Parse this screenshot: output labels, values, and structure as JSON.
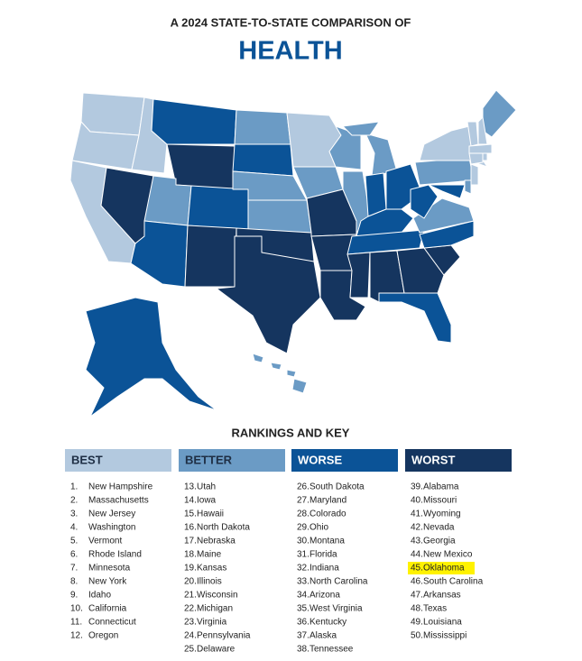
{
  "header": {
    "pretitle": "A 2024 STATE-TO-STATE COMPARISON OF",
    "title": "HEALTH"
  },
  "key_title": "RANKINGS AND KEY",
  "tiers": [
    {
      "name": "BEST",
      "color": "#b3c9df",
      "text_color": "#1f2f45",
      "entries": [
        {
          "rank": "1.",
          "state": "New Hampshire"
        },
        {
          "rank": "2.",
          "state": "Massachusetts"
        },
        {
          "rank": "3.",
          "state": "New Jersey"
        },
        {
          "rank": "4.",
          "state": "Washington"
        },
        {
          "rank": "5.",
          "state": "Vermont"
        },
        {
          "rank": "6.",
          "state": "Rhode Island"
        },
        {
          "rank": "7.",
          "state": "Minnesota"
        },
        {
          "rank": "8.",
          "state": "New York"
        },
        {
          "rank": "9.",
          "state": "Idaho"
        },
        {
          "rank": "10.",
          "state": "California"
        },
        {
          "rank": "11.",
          "state": "Connecticut"
        },
        {
          "rank": "12.",
          "state": "Oregon"
        }
      ]
    },
    {
      "name": "BETTER",
      "color": "#6b9bc5",
      "text_color": "#1f2f45",
      "entries": [
        {
          "rank": "13.",
          "state": "Utah"
        },
        {
          "rank": "14.",
          "state": "Iowa"
        },
        {
          "rank": "15.",
          "state": "Hawaii"
        },
        {
          "rank": "16.",
          "state": "North Dakota"
        },
        {
          "rank": "17.",
          "state": "Nebraska"
        },
        {
          "rank": "18.",
          "state": "Maine"
        },
        {
          "rank": "19.",
          "state": "Kansas"
        },
        {
          "rank": "20.",
          "state": "Illinois"
        },
        {
          "rank": "21.",
          "state": "Wisconsin"
        },
        {
          "rank": "22.",
          "state": "Michigan"
        },
        {
          "rank": "23.",
          "state": "Virginia"
        },
        {
          "rank": "24.",
          "state": "Pennsylvania"
        },
        {
          "rank": "25.",
          "state": "Delaware"
        }
      ]
    },
    {
      "name": "WORSE",
      "color": "#0b5397",
      "text_color": "#ffffff",
      "entries": [
        {
          "rank": "26.",
          "state": "South Dakota"
        },
        {
          "rank": "27.",
          "state": "Maryland"
        },
        {
          "rank": "28.",
          "state": "Colorado"
        },
        {
          "rank": "29.",
          "state": "Ohio"
        },
        {
          "rank": "30.",
          "state": "Montana"
        },
        {
          "rank": "31.",
          "state": "Florida"
        },
        {
          "rank": "32.",
          "state": "Indiana"
        },
        {
          "rank": "33.",
          "state": "North Carolina"
        },
        {
          "rank": "34.",
          "state": "Arizona"
        },
        {
          "rank": "35.",
          "state": "West Virginia"
        },
        {
          "rank": "36.",
          "state": "Kentucky"
        },
        {
          "rank": "37.",
          "state": "Alaska"
        },
        {
          "rank": "38.",
          "state": "Tennessee"
        }
      ]
    },
    {
      "name": "WORST",
      "color": "#15355f",
      "text_color": "#ffffff",
      "entries": [
        {
          "rank": "39.",
          "state": "Alabama"
        },
        {
          "rank": "40.",
          "state": "Missouri"
        },
        {
          "rank": "41.",
          "state": "Wyoming"
        },
        {
          "rank": "42.",
          "state": "Nevada"
        },
        {
          "rank": "43.",
          "state": "Georgia"
        },
        {
          "rank": "44.",
          "state": "New Mexico"
        },
        {
          "rank": "45.",
          "state": "Oklahoma",
          "highlight": true
        },
        {
          "rank": "46.",
          "state": "South Carolina"
        },
        {
          "rank": "47.",
          "state": "Arkansas"
        },
        {
          "rank": "48.",
          "state": "Texas"
        },
        {
          "rank": "49.",
          "state": "Louisiana"
        },
        {
          "rank": "50.",
          "state": "Mississippi"
        }
      ]
    }
  ]
}
